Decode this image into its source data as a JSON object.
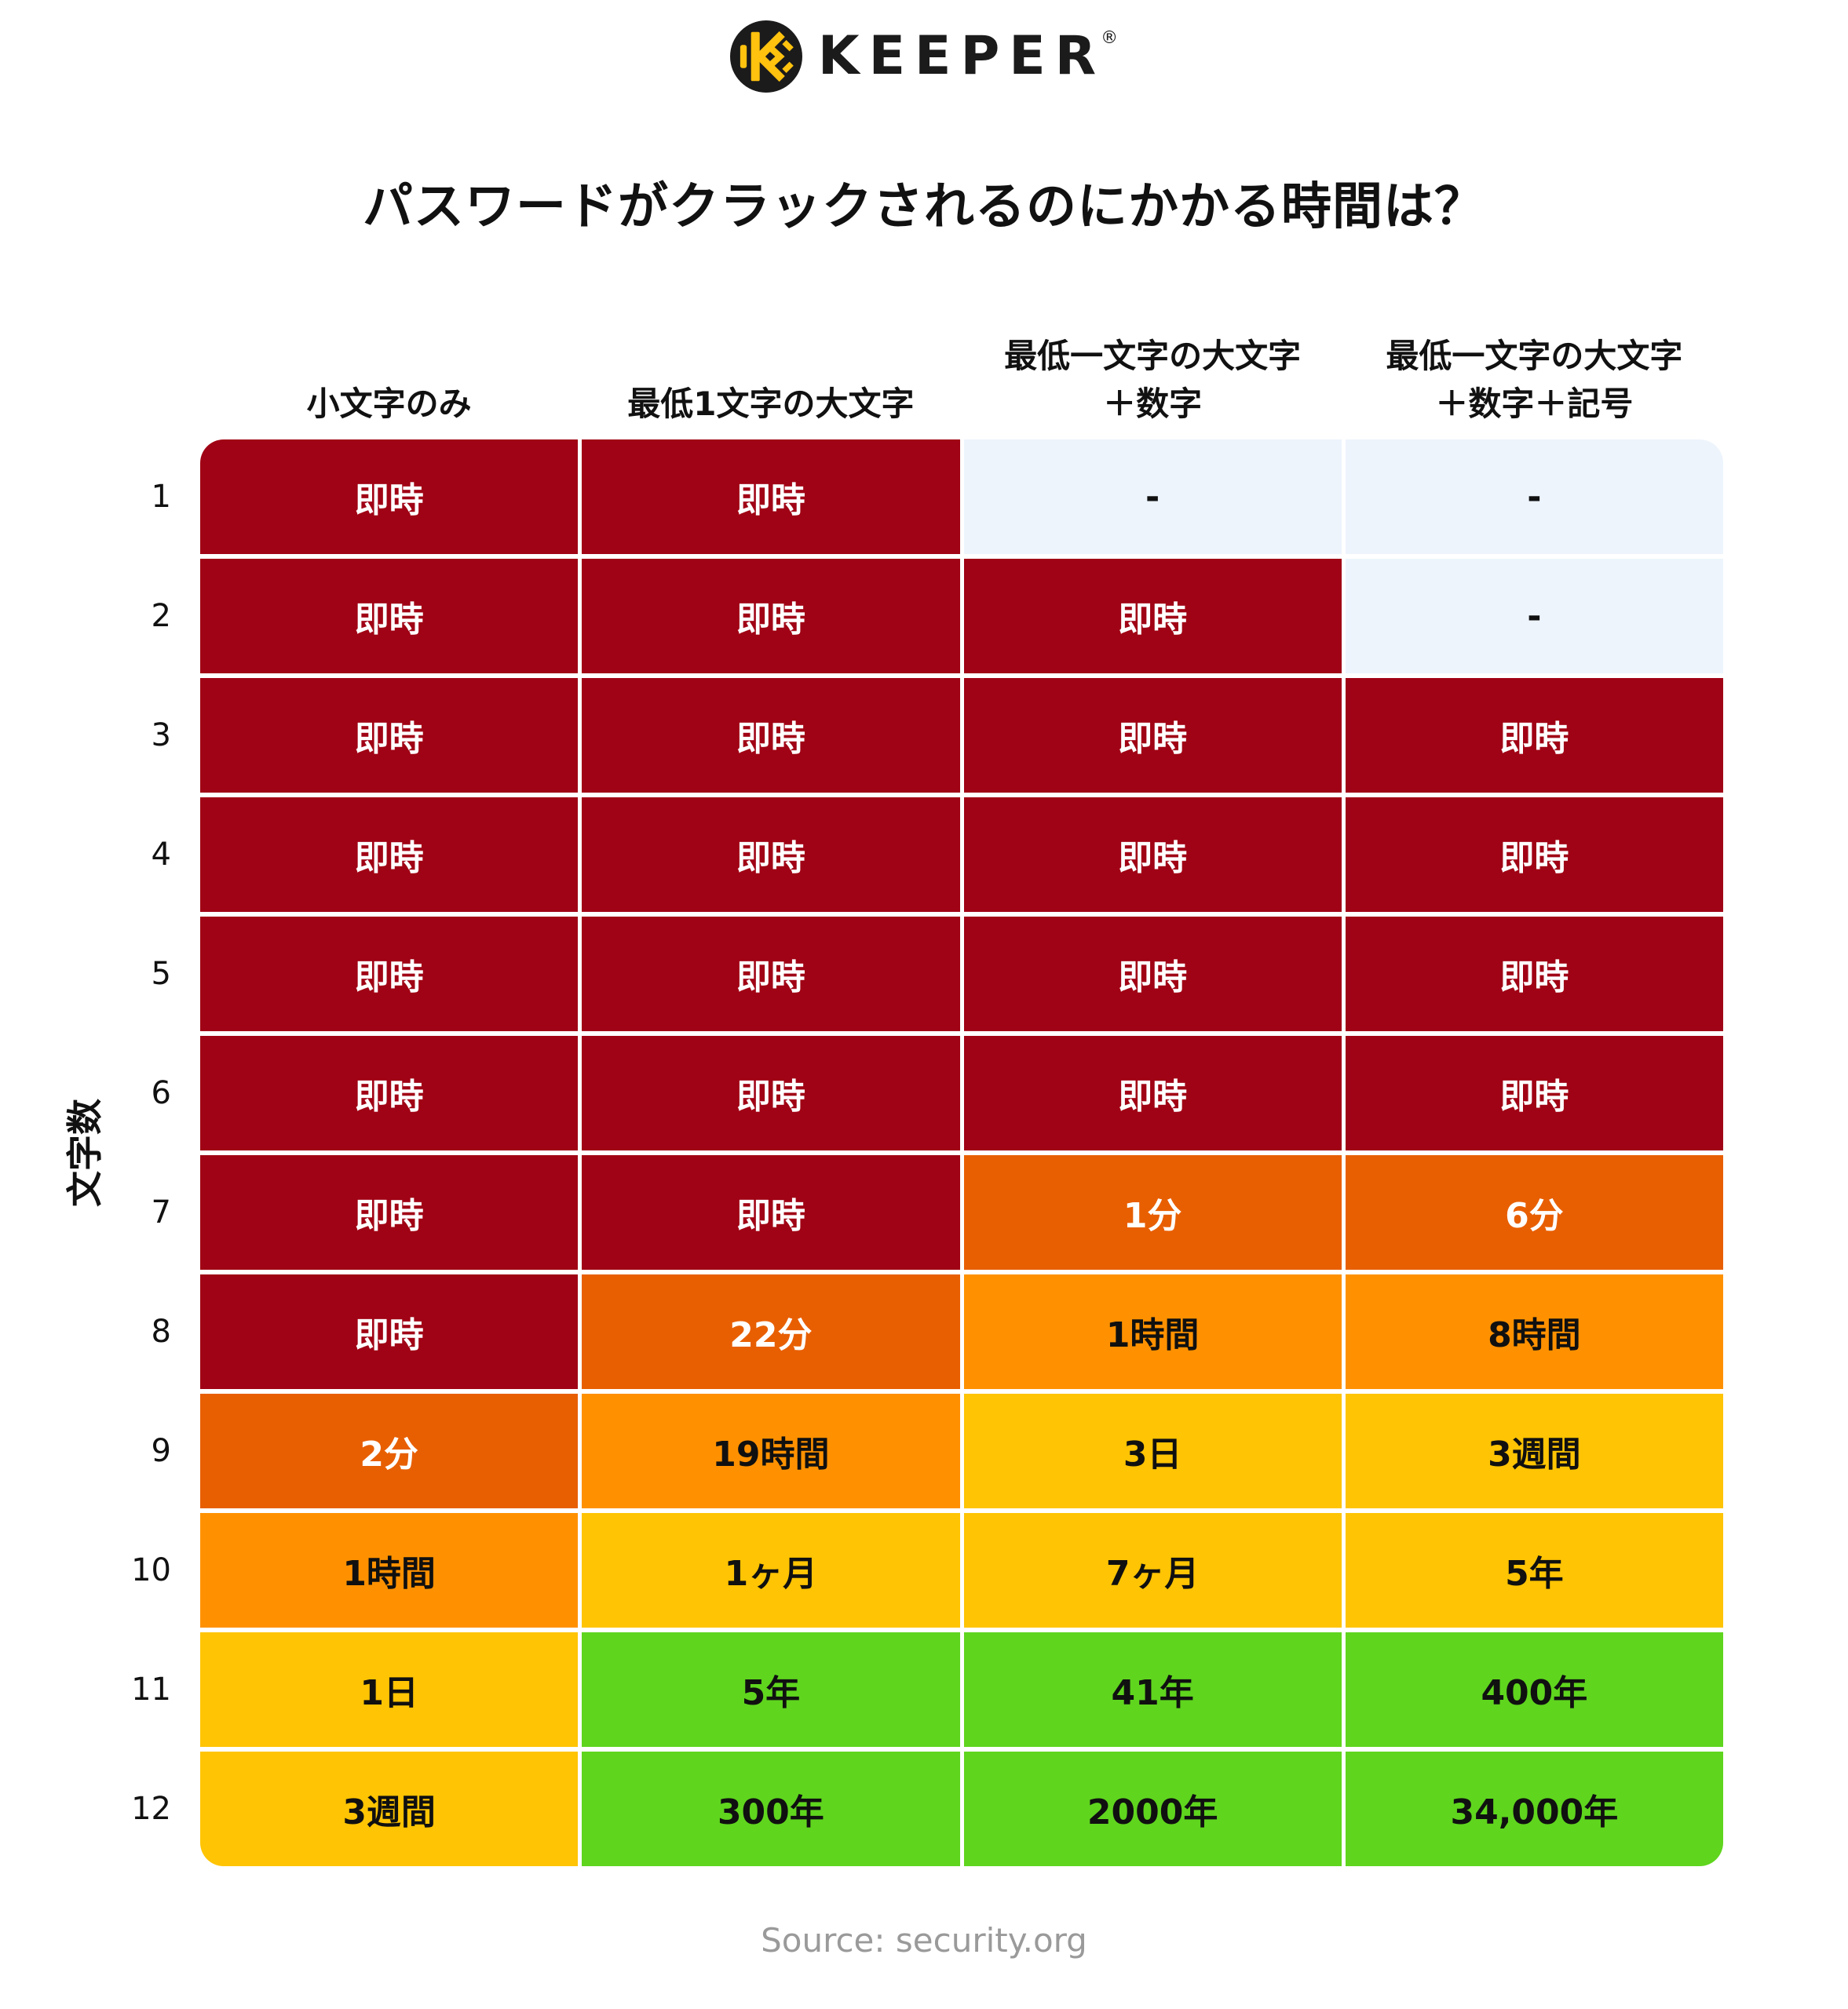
{
  "logo": {
    "brand": "KEEPER",
    "registered": "®",
    "icon": "keeper-circle-k-icon"
  },
  "title": "パスワードがクラックされるのにかかる時間は？",
  "y_axis_label": "文字数",
  "source": "Source: security.org",
  "palette": {
    "darkred": "#A00315",
    "darkorange": "#E85F02",
    "orange": "#FF9100",
    "yellow": "#FFC403",
    "green": "#5FD51E",
    "lightblue": "#EDF4FC",
    "text_light": "#FFFFFF",
    "text_dark": "#101010",
    "brand_yellow": "#FFC20E",
    "brand_black": "#1B1B1B"
  },
  "chart_data": {
    "type": "heatmap",
    "title": "パスワードがクラックされるのにかかる時間は？",
    "ylabel": "文字数",
    "legend_position": "none",
    "columns": [
      "小文字のみ",
      "最低1文字の大文字",
      "最低一文字の大文字\n＋数字",
      "最低一文字の大文字\n＋数字＋記号"
    ],
    "row_labels": [
      "1",
      "2",
      "3",
      "4",
      "5",
      "6",
      "7",
      "8",
      "9",
      "10",
      "11",
      "12"
    ],
    "cells": [
      [
        {
          "text": "即時",
          "level": "darkred"
        },
        {
          "text": "即時",
          "level": "darkred"
        },
        {
          "text": "-",
          "level": "lightblue"
        },
        {
          "text": "-",
          "level": "lightblue"
        }
      ],
      [
        {
          "text": "即時",
          "level": "darkred"
        },
        {
          "text": "即時",
          "level": "darkred"
        },
        {
          "text": "即時",
          "level": "darkred"
        },
        {
          "text": "-",
          "level": "lightblue"
        }
      ],
      [
        {
          "text": "即時",
          "level": "darkred"
        },
        {
          "text": "即時",
          "level": "darkred"
        },
        {
          "text": "即時",
          "level": "darkred"
        },
        {
          "text": "即時",
          "level": "darkred"
        }
      ],
      [
        {
          "text": "即時",
          "level": "darkred"
        },
        {
          "text": "即時",
          "level": "darkred"
        },
        {
          "text": "即時",
          "level": "darkred"
        },
        {
          "text": "即時",
          "level": "darkred"
        }
      ],
      [
        {
          "text": "即時",
          "level": "darkred"
        },
        {
          "text": "即時",
          "level": "darkred"
        },
        {
          "text": "即時",
          "level": "darkred"
        },
        {
          "text": "即時",
          "level": "darkred"
        }
      ],
      [
        {
          "text": "即時",
          "level": "darkred"
        },
        {
          "text": "即時",
          "level": "darkred"
        },
        {
          "text": "即時",
          "level": "darkred"
        },
        {
          "text": "即時",
          "level": "darkred"
        }
      ],
      [
        {
          "text": "即時",
          "level": "darkred"
        },
        {
          "text": "即時",
          "level": "darkred"
        },
        {
          "text": "1分",
          "level": "darkorange"
        },
        {
          "text": "6分",
          "level": "darkorange"
        }
      ],
      [
        {
          "text": "即時",
          "level": "darkred"
        },
        {
          "text": "22分",
          "level": "darkorange"
        },
        {
          "text": "1時間",
          "level": "orange"
        },
        {
          "text": "8時間",
          "level": "orange"
        }
      ],
      [
        {
          "text": "2分",
          "level": "darkorange"
        },
        {
          "text": "19時間",
          "level": "orange"
        },
        {
          "text": "3日",
          "level": "yellow"
        },
        {
          "text": "3週間",
          "level": "yellow"
        }
      ],
      [
        {
          "text": "1時間",
          "level": "orange"
        },
        {
          "text": "1ヶ月",
          "level": "yellow"
        },
        {
          "text": "7ヶ月",
          "level": "yellow"
        },
        {
          "text": "5年",
          "level": "yellow"
        }
      ],
      [
        {
          "text": "1日",
          "level": "yellow"
        },
        {
          "text": "5年",
          "level": "green"
        },
        {
          "text": "41年",
          "level": "green"
        },
        {
          "text": "400年",
          "level": "green"
        }
      ],
      [
        {
          "text": "3週間",
          "level": "yellow"
        },
        {
          "text": "300年",
          "level": "green"
        },
        {
          "text": "2000年",
          "level": "green"
        },
        {
          "text": "34,000年",
          "level": "green"
        }
      ]
    ]
  }
}
